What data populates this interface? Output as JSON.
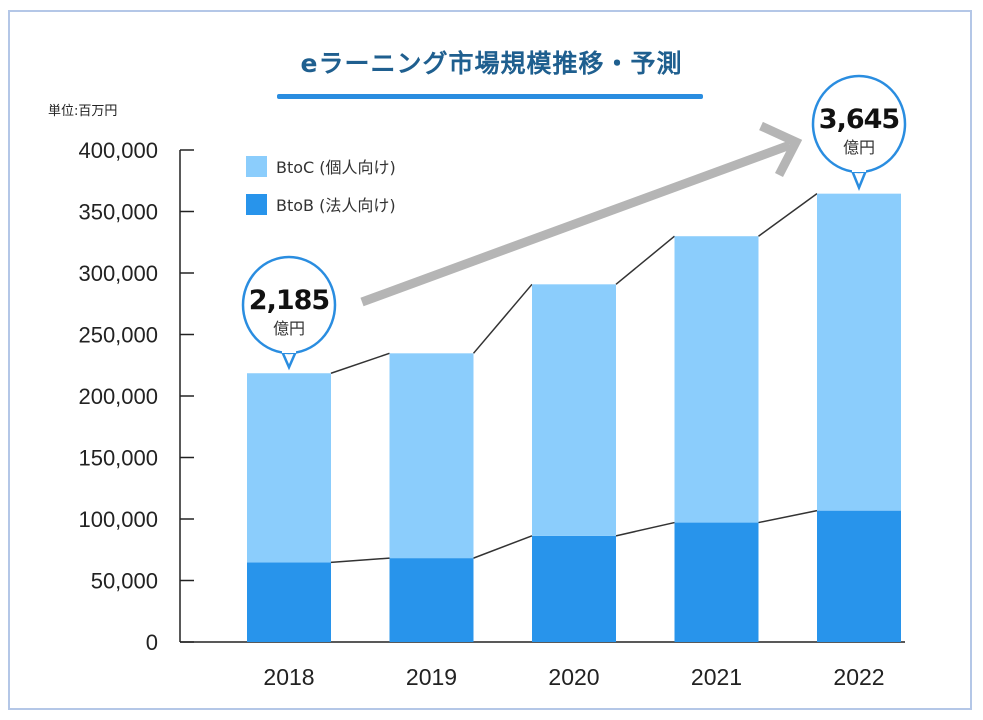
{
  "chart_data": {
    "type": "bar",
    "stacked": true,
    "title": "eラーニング市場規模推移・予測",
    "unit_label": "単位:百万円",
    "categories": [
      "2018",
      "2019",
      "2020",
      "2021",
      "2022"
    ],
    "series": [
      {
        "name": "BtoB (法人向け)",
        "color": "#2894eb",
        "values": [
          64700,
          68200,
          86300,
          97100,
          106800
        ]
      },
      {
        "name": "BtoC (個人向け)",
        "color": "#8bcdfc",
        "values": [
          153800,
          166500,
          204500,
          232800,
          257700
        ]
      }
    ],
    "ylim": [
      0,
      400000
    ],
    "yticks": [
      "0",
      "50,000",
      "100,000",
      "150,000",
      "200,000",
      "250,000",
      "300,000",
      "350,000",
      "400,000"
    ],
    "legend": "top-left",
    "grid": false,
    "annotations": [
      {
        "category": "2018",
        "value": "2,185",
        "unit": "億円"
      },
      {
        "category": "2022",
        "value": "3,645",
        "unit": "億円"
      }
    ],
    "trend_arrow": {
      "from": "2018",
      "to": "2022",
      "color": "#b5b5b5"
    }
  }
}
